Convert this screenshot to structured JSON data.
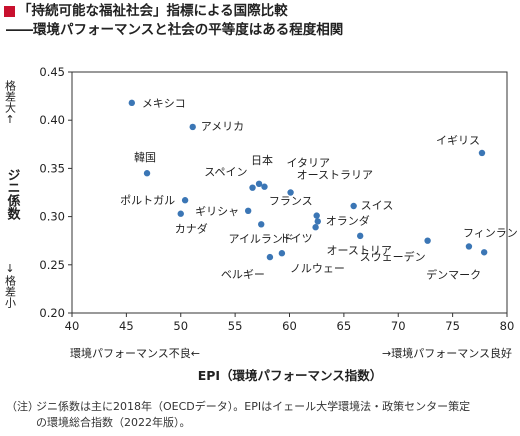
{
  "title": {
    "line1": "「持続可能な福祉社会」指標による国際比較",
    "line2": "――環境パフォーマンスと社会の平等度はある程度相関"
  },
  "chart_data": {
    "type": "scatter",
    "xlabel": "EPI（環境パフォーマンス指数）",
    "ylabel": "ジニ係数",
    "xlim": [
      40,
      80
    ],
    "ylim": [
      0.2,
      0.45
    ],
    "x_ticks": [
      "40",
      "45",
      "50",
      "55",
      "60",
      "65",
      "70",
      "75",
      "80"
    ],
    "y_ticks": [
      "0.20",
      "0.25",
      "0.30",
      "0.35",
      "0.40",
      "0.45"
    ],
    "y_top_note": "格差大↑",
    "y_bottom_note": "↓格差小",
    "x_left_note": "環境パフォーマンス不良←",
    "x_right_note": "→環境パフォーマンス良好",
    "grid": false,
    "point_color": "#3b76b5",
    "points": [
      {
        "label": "メキシコ",
        "x": 45.5,
        "y": 0.418
      },
      {
        "label": "アメリカ",
        "x": 51.1,
        "y": 0.393
      },
      {
        "label": "韓国",
        "x": 46.9,
        "y": 0.345
      },
      {
        "label": "日本",
        "x": 57.2,
        "y": 0.334
      },
      {
        "label": "スペイン",
        "x": 56.6,
        "y": 0.33
      },
      {
        "label": "イタリア",
        "x": 57.7,
        "y": 0.331
      },
      {
        "label": "オーストラリア",
        "x": 60.1,
        "y": 0.325
      },
      {
        "label": "イギリス",
        "x": 77.7,
        "y": 0.366
      },
      {
        "label": "ポルトガル",
        "x": 50.4,
        "y": 0.317
      },
      {
        "label": "カナダ",
        "x": 50.0,
        "y": 0.303
      },
      {
        "label": "ギリシャ",
        "x": 56.2,
        "y": 0.306
      },
      {
        "label": "フランス",
        "x": 62.5,
        "y": 0.301
      },
      {
        "label": "スイス",
        "x": 65.9,
        "y": 0.311
      },
      {
        "label": "オランダ",
        "x": 62.6,
        "y": 0.295
      },
      {
        "label": "ドイツ",
        "x": 62.4,
        "y": 0.289
      },
      {
        "label": "アイルランド",
        "x": 57.4,
        "y": 0.292
      },
      {
        "label": "オーストリア",
        "x": 66.5,
        "y": 0.28
      },
      {
        "label": "ベルギー",
        "x": 58.2,
        "y": 0.258
      },
      {
        "label": "ノルウェー",
        "x": 59.3,
        "y": 0.262
      },
      {
        "label": "スウェーデン",
        "x": 72.7,
        "y": 0.275
      },
      {
        "label": "フィンランド",
        "x": 76.5,
        "y": 0.269
      },
      {
        "label": "デンマーク",
        "x": 77.9,
        "y": 0.263
      }
    ]
  },
  "note": {
    "tag": "（注）",
    "line1": "ジニ係数は主に2018年（OECDデータ）。EPIはイェール大学環境法・政策センター策定",
    "line2": "の環境総合指数（2022年版）。"
  }
}
